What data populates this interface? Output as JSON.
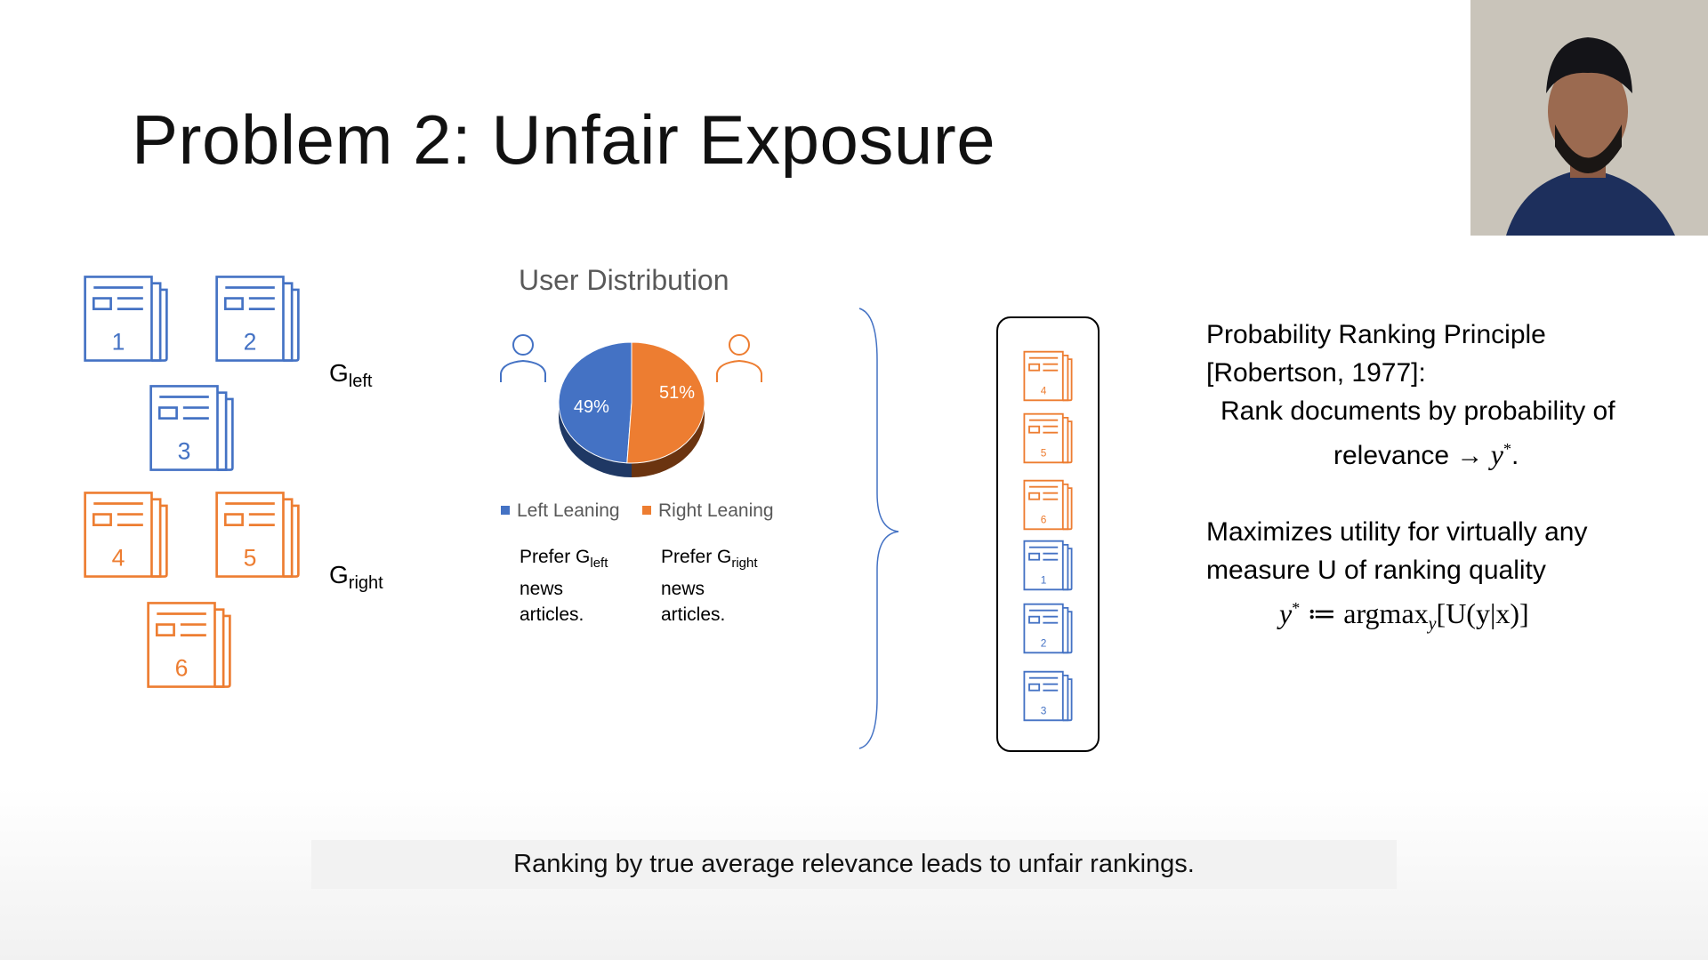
{
  "slide": {
    "title": "Problem 2: Unfair Exposure",
    "groups": {
      "left_label": "G",
      "left_sub": "left",
      "right_label": "G",
      "right_sub": "right"
    },
    "documents_left": [
      {
        "number": "1",
        "group": "left"
      },
      {
        "number": "2",
        "group": "left"
      },
      {
        "number": "3",
        "group": "left"
      },
      {
        "number": "4",
        "group": "right"
      },
      {
        "number": "5",
        "group": "right"
      },
      {
        "number": "6",
        "group": "right"
      }
    ],
    "user_distribution": {
      "title": "User Distribution",
      "legend": [
        "Left Leaning",
        "Right Leaning"
      ],
      "prefer_left": {
        "prefix": "Prefer G",
        "sub": "left",
        "line2": "news",
        "line3": "articles."
      },
      "prefer_right": {
        "prefix": "Prefer G",
        "sub": "right",
        "line2": "news",
        "line3": "articles."
      }
    },
    "ranking": [
      "4",
      "5",
      "6",
      "1",
      "2",
      "3"
    ],
    "prp": {
      "line1": "Probability Ranking Principle",
      "line2": "[Robertson, 1977]:",
      "line3": "Rank documents by probability of",
      "line4_text": "relevance → ",
      "line4_math": "y",
      "line4_sup": "*",
      "line4_end": ".",
      "line5": "Maximizes utility for virtually any",
      "line6": "measure U of ranking quality",
      "formula_lhs": "y",
      "formula_sup": "*",
      "formula_op": " ≔ argmax",
      "formula_sub": "y",
      "formula_rest": "[U(y|x)]"
    },
    "caption": "Ranking by true average relevance leads to unfair rankings."
  },
  "colors": {
    "left": "#4472c4",
    "right": "#ed7d31",
    "left_dark": "#1f3864",
    "right_dark": "#6b3410"
  },
  "chart_data": {
    "type": "pie",
    "title": "User Distribution",
    "categories": [
      "Left Leaning",
      "Right Leaning"
    ],
    "values": [
      49,
      51
    ],
    "labels": [
      "49%",
      "51%"
    ],
    "legend_position": "bottom"
  }
}
